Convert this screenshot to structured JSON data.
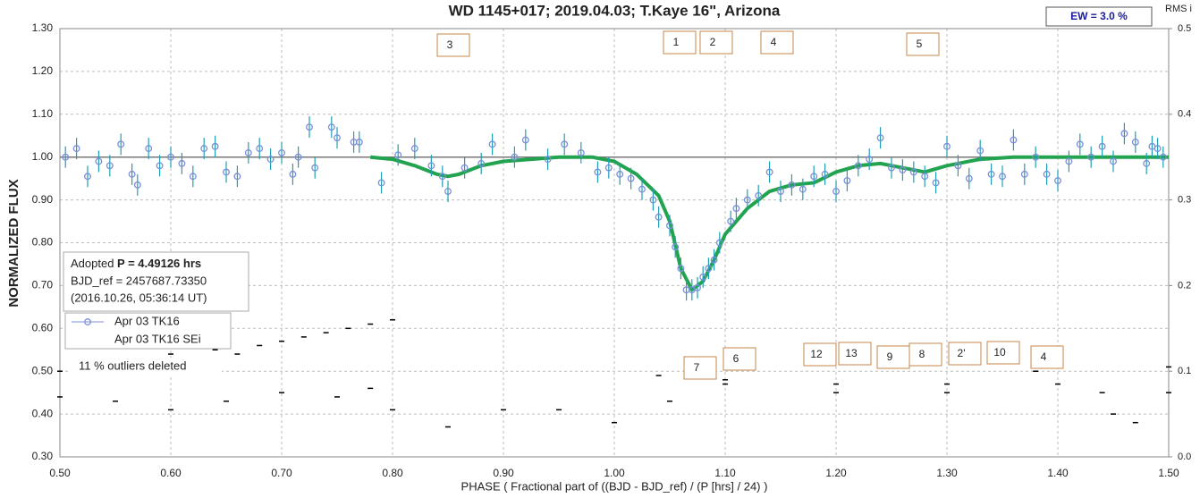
{
  "chart_data": {
    "type": "scatter",
    "title": "WD 1145+017; 2019.04.03; T.Kaye 16\", Arizona",
    "x_label": "PHASE ( Fractional part of ((BJD - BJD_ref) / (P [hrs] / 24) )",
    "y_label": "NORMALIZED FLUX",
    "y2_label": "RMS i",
    "ew_label": "EW =  3.0 %",
    "info": {
      "prefix": "Adopted ",
      "period": "P = 4.49126 hrs",
      "bjd_ref": "BJD_ref = 2457687.73350",
      "date": "(2016.10.26, 05:36:14 UT)"
    },
    "outliers_note": "11 % outliers deleted",
    "dip_labels": [
      "3",
      "1",
      "2",
      "4",
      "5",
      "7",
      "6",
      "12",
      "13",
      "9",
      "8",
      "2'",
      "10",
      "4"
    ],
    "xlim": [
      0.5,
      1.5
    ],
    "xticks": [
      {
        "value": 0.5,
        "label": "0.50"
      },
      {
        "value": 0.6,
        "label": "0.60"
      },
      {
        "value": 0.7,
        "label": "0.70"
      },
      {
        "value": 0.8,
        "label": "0.80"
      },
      {
        "value": 0.9,
        "label": "0.90"
      },
      {
        "value": 1.0,
        "label": "1.00"
      },
      {
        "value": 1.1,
        "label": "1.10"
      },
      {
        "value": 1.2,
        "label": "1.20"
      },
      {
        "value": 1.3,
        "label": "1.30"
      },
      {
        "value": 1.4,
        "label": "1.40"
      },
      {
        "value": 1.5,
        "label": "1.50"
      }
    ],
    "ylim": [
      0.3,
      1.3
    ],
    "yticks": [
      {
        "value": 0.3,
        "label": "0.30"
      },
      {
        "value": 0.4,
        "label": "0.40"
      },
      {
        "value": 0.5,
        "label": "0.50"
      },
      {
        "value": 0.6,
        "label": "0.60"
      },
      {
        "value": 0.7,
        "label": "0.70"
      },
      {
        "value": 0.8,
        "label": "0.80"
      },
      {
        "value": 0.9,
        "label": "0.90"
      },
      {
        "value": 1.0,
        "label": "1.00"
      },
      {
        "value": 1.1,
        "label": "1.10"
      },
      {
        "value": 1.2,
        "label": "1.20"
      },
      {
        "value": 1.3,
        "label": "1.30"
      }
    ],
    "y2lim": [
      0,
      0.5
    ],
    "y2ticks": [
      {
        "value": 0,
        "label": "0.0"
      },
      0.1,
      0.2,
      0.3,
      0.4,
      0.5
    ],
    "grid": true,
    "reference_line": 1.0,
    "series": [
      {
        "name": "Apr 03 TK16",
        "color": "#7b8fd9",
        "error_color": "#1f9fb5",
        "error": 0.025,
        "x": [
          0.505,
          0.515,
          0.525,
          0.535,
          0.545,
          0.555,
          0.565,
          0.57,
          0.58,
          0.59,
          0.6,
          0.61,
          0.62,
          0.63,
          0.64,
          0.65,
          0.66,
          0.67,
          0.68,
          0.69,
          0.7,
          0.71,
          0.715,
          0.725,
          0.73,
          0.745,
          0.75,
          0.765,
          0.77,
          0.79,
          0.805,
          0.82,
          0.835,
          0.845,
          0.85,
          0.865,
          0.88,
          0.89,
          0.91,
          0.92,
          0.94,
          0.955,
          0.97,
          0.985,
          0.995,
          1.005,
          1.015,
          1.025,
          1.035,
          1.04,
          1.05,
          1.055,
          1.06,
          1.065,
          1.07,
          1.075,
          1.08,
          1.085,
          1.09,
          1.095,
          1.105,
          1.11,
          1.12,
          1.13,
          1.14,
          1.15,
          1.16,
          1.17,
          1.18,
          1.19,
          1.2,
          1.21,
          1.22,
          1.23,
          1.24,
          1.25,
          1.26,
          1.27,
          1.28,
          1.29,
          1.3,
          1.31,
          1.32,
          1.33,
          1.34,
          1.35,
          1.36,
          1.37,
          1.38,
          1.39,
          1.4,
          1.41,
          1.42,
          1.43,
          1.44,
          1.45,
          1.46,
          1.47,
          1.48,
          1.485,
          1.49,
          1.495
        ],
        "values": [
          1.0,
          1.02,
          0.955,
          0.99,
          0.98,
          1.03,
          0.96,
          0.935,
          1.02,
          0.98,
          1.0,
          0.985,
          0.955,
          1.02,
          1.025,
          0.965,
          0.955,
          1.01,
          1.02,
          0.995,
          1.01,
          0.96,
          1.0,
          1.07,
          0.975,
          1.07,
          1.045,
          1.035,
          1.035,
          0.94,
          1.005,
          1.02,
          0.98,
          0.955,
          0.92,
          0.975,
          0.985,
          1.03,
          1.0,
          1.04,
          0.995,
          1.03,
          1.01,
          0.965,
          0.975,
          0.96,
          0.95,
          0.925,
          0.9,
          0.86,
          0.84,
          0.79,
          0.74,
          0.69,
          0.69,
          0.695,
          0.72,
          0.74,
          0.76,
          0.8,
          0.85,
          0.88,
          0.9,
          0.91,
          0.965,
          0.92,
          0.935,
          0.925,
          0.955,
          0.96,
          0.92,
          0.945,
          0.98,
          0.995,
          1.045,
          0.975,
          0.97,
          0.965,
          0.955,
          0.94,
          1.025,
          0.98,
          0.95,
          1.015,
          0.96,
          0.955,
          1.04,
          0.96,
          1.0,
          0.96,
          0.945,
          0.99,
          1.03,
          1.0,
          1.025,
          0.99,
          1.055,
          1.035,
          0.985,
          1.025,
          1.02,
          1.0
        ]
      },
      {
        "name": "Apr 03 TK16 SEi",
        "color": "#000000",
        "axis": "y2",
        "x": [
          0.5,
          0.52,
          0.54,
          0.56,
          0.58,
          0.6,
          0.62,
          0.64,
          0.66,
          0.68,
          0.7,
          0.72,
          0.74,
          0.76,
          0.78,
          0.8,
          1.04,
          1.1,
          1.2,
          1.3,
          1.38,
          1.44,
          1.5
        ],
        "values": [
          0.1,
          0.105,
          0.11,
          0.105,
          0.115,
          0.12,
          0.115,
          0.125,
          0.12,
          0.13,
          0.135,
          0.14,
          0.145,
          0.15,
          0.155,
          0.16,
          0.095,
          0.09,
          0.085,
          0.085,
          0.1,
          0.075,
          0.105
        ]
      },
      {
        "color": "#000000",
        "axis": "y2",
        "x": [
          0.5,
          0.55,
          0.6,
          0.65,
          0.7,
          0.75,
          0.78,
          0.8,
          0.85,
          0.9,
          0.95,
          1.0,
          1.05,
          1.1,
          1.2,
          1.3,
          1.4,
          1.45,
          1.47,
          1.5
        ],
        "values": [
          0.07,
          0.065,
          0.055,
          0.065,
          0.075,
          0.07,
          0.08,
          0.055,
          0.035,
          0.055,
          0.055,
          0.04,
          0.065,
          0.085,
          0.075,
          0.075,
          0.085,
          0.05,
          0.04,
          0.075
        ]
      }
    ],
    "model": {
      "color": "#22a350",
      "x": [
        0.78,
        0.8,
        0.82,
        0.84,
        0.85,
        0.86,
        0.88,
        0.9,
        0.95,
        0.98,
        1.0,
        1.02,
        1.04,
        1.05,
        1.06,
        1.07,
        1.08,
        1.09,
        1.1,
        1.12,
        1.14,
        1.16,
        1.18,
        1.2,
        1.22,
        1.24,
        1.26,
        1.28,
        1.3,
        1.33,
        1.36,
        1.5
      ],
      "values": [
        1.0,
        0.995,
        0.98,
        0.96,
        0.955,
        0.96,
        0.98,
        0.99,
        1.0,
        1.0,
        0.99,
        0.96,
        0.91,
        0.85,
        0.74,
        0.69,
        0.71,
        0.76,
        0.82,
        0.88,
        0.92,
        0.935,
        0.94,
        0.965,
        0.98,
        0.985,
        0.975,
        0.965,
        0.98,
        0.995,
        1.0,
        1.0
      ]
    }
  }
}
